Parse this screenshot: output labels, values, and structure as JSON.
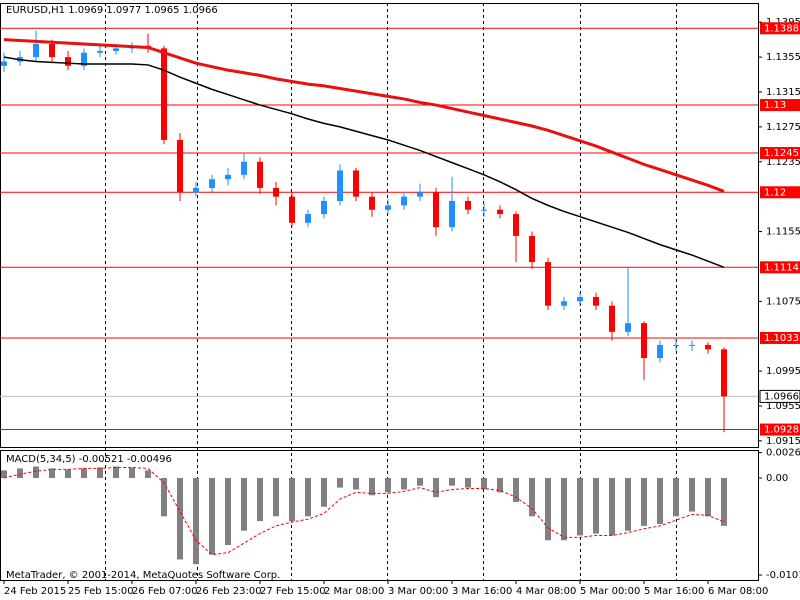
{
  "chart_data": [
    {
      "type": "candlestick",
      "title": "EURUSD,H1  1.0969 1.0977 1.0965 1.0966",
      "categories": [
        "24 Feb 2015",
        null,
        null,
        null,
        "25 Feb 15:00",
        null,
        null,
        null,
        "26 Feb 07:00",
        null,
        null,
        null,
        "26 Feb 23:00",
        null,
        null,
        null,
        "27 Feb 15:00",
        null,
        null,
        null,
        "2 Mar 08:00",
        null,
        null,
        null,
        "3 Mar 00:00",
        null,
        null,
        null,
        "3 Mar 16:00",
        null,
        null,
        null,
        "4 Mar 08:00",
        null,
        null,
        null,
        "5 Mar 00:00",
        null,
        null,
        null,
        "5 Mar 16:00",
        null,
        null,
        null,
        "6 Mar 08:00",
        null
      ],
      "open": [
        1.1345,
        1.135,
        1.1355,
        1.137,
        1.1355,
        1.1345,
        1.136,
        1.1362,
        1.1365,
        1.1368,
        1.1365,
        1.126,
        1.12,
        1.1205,
        1.1215,
        1.122,
        1.1235,
        1.1205,
        1.1195,
        1.1165,
        1.1175,
        1.119,
        1.1225,
        1.1195,
        1.118,
        1.1185,
        1.1195,
        1.12,
        1.116,
        1.119,
        1.118,
        1.118,
        1.1175,
        1.115,
        1.112,
        1.107,
        1.1075,
        1.108,
        1.107,
        1.104,
        1.105,
        1.101,
        1.1025,
        1.1025,
        1.1025,
        1.102
      ],
      "high": [
        1.136,
        1.1362,
        1.1385,
        1.1375,
        1.1362,
        1.1365,
        1.1368,
        1.137,
        1.1372,
        1.1382,
        1.1368,
        1.1268,
        1.1212,
        1.122,
        1.1228,
        1.1245,
        1.124,
        1.1212,
        1.12,
        1.118,
        1.1195,
        1.1232,
        1.1228,
        1.12,
        1.1192,
        1.12,
        1.121,
        1.1205,
        1.1218,
        1.1195,
        1.1188,
        1.1185,
        1.1178,
        1.1155,
        1.1125,
        1.108,
        1.1085,
        1.1085,
        1.1075,
        1.1114,
        1.1052,
        1.103,
        1.1032,
        1.103,
        1.1028,
        1.1022
      ],
      "low": [
        1.1338,
        1.1345,
        1.135,
        1.135,
        1.134,
        1.134,
        1.1355,
        1.1358,
        1.136,
        1.136,
        1.1255,
        1.119,
        1.1195,
        1.12,
        1.1208,
        1.1215,
        1.1198,
        1.1185,
        1.116,
        1.116,
        1.117,
        1.1185,
        1.119,
        1.1172,
        1.1175,
        1.118,
        1.119,
        1.115,
        1.1155,
        1.1175,
        1.1172,
        1.117,
        1.112,
        1.1112,
        1.1065,
        1.1065,
        1.107,
        1.1065,
        1.103,
        1.1035,
        1.0985,
        1.1005,
        1.1018,
        1.1018,
        1.1015,
        1.0925
      ],
      "close": [
        1.135,
        1.1355,
        1.137,
        1.1355,
        1.1345,
        1.136,
        1.1362,
        1.1365,
        1.1368,
        1.1365,
        1.126,
        1.12,
        1.1205,
        1.1215,
        1.122,
        1.1235,
        1.1205,
        1.1195,
        1.1165,
        1.1175,
        1.119,
        1.1225,
        1.1195,
        1.118,
        1.1185,
        1.1195,
        1.12,
        1.116,
        1.119,
        1.118,
        1.118,
        1.1175,
        1.115,
        1.112,
        1.107,
        1.1075,
        1.108,
        1.107,
        1.104,
        1.105,
        1.101,
        1.1025,
        1.1025,
        1.1025,
        1.102,
        1.0966
      ],
      "up_color": "#1e90ff",
      "down_color": "#ff0000",
      "series": [
        {
          "color": "#e81010",
          "values": [
            1.1375,
            1.1374,
            1.1373,
            1.1372,
            1.1371,
            1.137,
            1.1369,
            1.1368,
            1.1367,
            1.1366,
            1.136,
            1.1354,
            1.1348,
            1.1344,
            1.134,
            1.1337,
            1.1334,
            1.133,
            1.1327,
            1.1324,
            1.1322,
            1.1319,
            1.1316,
            1.1313,
            1.131,
            1.1307,
            1.1303,
            1.13,
            1.1296,
            1.1292,
            1.1288,
            1.1284,
            1.128,
            1.1276,
            1.1271,
            1.1265,
            1.1259,
            1.1253,
            1.1246,
            1.1239,
            1.1232,
            1.1226,
            1.122,
            1.1214,
            1.1208,
            1.1201
          ]
        },
        {
          "color": "#000000",
          "values": [
            1.1355,
            1.1352,
            1.135,
            1.1349,
            1.1348,
            1.1347,
            1.1347,
            1.1347,
            1.1347,
            1.1346,
            1.134,
            1.1332,
            1.1325,
            1.1318,
            1.1312,
            1.1306,
            1.13,
            1.1295,
            1.129,
            1.1284,
            1.1279,
            1.1275,
            1.127,
            1.1265,
            1.126,
            1.1254,
            1.1248,
            1.1241,
            1.1234,
            1.1227,
            1.122,
            1.1212,
            1.1203,
            1.1193,
            1.1185,
            1.1178,
            1.1172,
            1.1166,
            1.116,
            1.1154,
            1.1147,
            1.114,
            1.1134,
            1.1128,
            1.1121,
            1.1114
          ]
        }
      ],
      "levels": [
        1.1388,
        1.13,
        1.1245,
        1.12,
        1.1114,
        1.1033,
        1.0928
      ],
      "level_color": "#ff0000",
      "current_price": 1.0966,
      "ylim": [
        1.0908,
        1.1417
      ],
      "yticks": [
        1.1395,
        1.1355,
        1.1315,
        1.1275,
        1.1235,
        1.1155,
        1.1075,
        1.0995,
        1.0955,
        1.0915
      ]
    },
    {
      "type": "macd",
      "title": "MACD(5,34,5) -0.00521 -0.00496",
      "color": "#808080",
      "values": [
        0.0008,
        0.001,
        0.0012,
        0.001,
        0.0009,
        0.001,
        0.0011,
        0.0012,
        0.0011,
        0.0008,
        -0.004,
        -0.0085,
        -0.009,
        -0.008,
        -0.007,
        -0.0055,
        -0.0045,
        -0.004,
        -0.0045,
        -0.004,
        -0.003,
        -0.001,
        -0.0012,
        -0.0018,
        -0.0015,
        -0.0012,
        -0.0008,
        -0.002,
        -0.0008,
        -0.001,
        -0.0012,
        -0.0015,
        -0.0025,
        -0.004,
        -0.0065,
        -0.0065,
        -0.006,
        -0.0058,
        -0.006,
        -0.0055,
        -0.005,
        -0.0048,
        -0.004,
        -0.0035,
        -0.004,
        -0.005
      ],
      "signal": {
        "color": "#ff0000",
        "values": [
          0.0,
          0.0004,
          0.0007,
          0.0009,
          0.0009,
          0.001,
          0.001,
          0.0011,
          0.0011,
          0.001,
          -0.0005,
          -0.0035,
          -0.0065,
          -0.008,
          -0.0078,
          -0.0068,
          -0.0058,
          -0.005,
          -0.0046,
          -0.0043,
          -0.0037,
          -0.0022,
          -0.0015,
          -0.0016,
          -0.0016,
          -0.0014,
          -0.001,
          -0.0015,
          -0.0012,
          -0.0011,
          -0.0011,
          -0.0013,
          -0.002,
          -0.0032,
          -0.0052,
          -0.0062,
          -0.0062,
          -0.006,
          -0.006,
          -0.0057,
          -0.0053,
          -0.005,
          -0.0044,
          -0.0038,
          -0.0039,
          -0.0046
        ]
      },
      "ylim": [
        -0.01065,
        0.00282
      ],
      "yticks": [
        0.00265,
        {
          "value": 0,
          "label": "0.00"
        },
        -0.01013
      ],
      "footer": "MetaTrader, © 2001-2014, MetaQuotes Software Corp."
    }
  ]
}
